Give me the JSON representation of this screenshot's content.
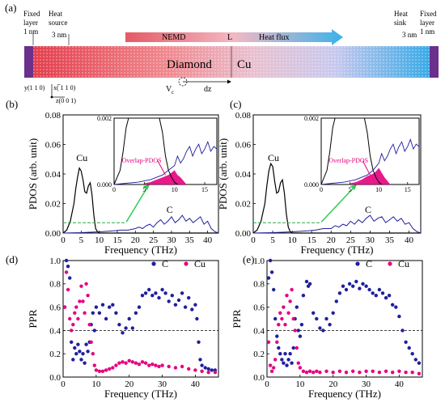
{
  "schematic": {
    "panel_label": "(a)",
    "fixed_left": [
      "Fixed",
      "layer",
      "1 nm"
    ],
    "heat_source": [
      "Heat",
      "source"
    ],
    "dim_3nm_left": "3 nm",
    "nemd": "NEMD",
    "length": "L",
    "heat_flux": "Heat flux",
    "heat_sink": [
      "Heat",
      "sink"
    ],
    "dim_3nm_right": "3 nm",
    "fixed_right": [
      "Fixed",
      "layer",
      "1 nm"
    ],
    "diamond": "Diamond",
    "cu": "Cu",
    "vacancy": "V",
    "vacancy_sub": "c",
    "dz": "dz",
    "axis_y": "y(1 1 0)",
    "axis_x": "x(̅ 1 1 0)",
    "axis_z": "z(0 0 1)"
  },
  "colors": {
    "cu": "#000000",
    "c": "#1f1f9e",
    "overlap": "#e6007e",
    "arrow": "#2ecc55",
    "dashed": "#22aa44"
  },
  "chart_data": [
    {
      "panel": "(b)",
      "type": "line",
      "xlabel": "Frequency (THz)",
      "ylabel": "PDOS (arb. unit)",
      "xlim": [
        0,
        43
      ],
      "ylim": [
        0,
        0.08
      ],
      "xticks": [
        0,
        5,
        10,
        15,
        20,
        25,
        30,
        35,
        40
      ],
      "yticks": [
        "0.00",
        "0.02",
        "0.04",
        "0.06",
        "0.08"
      ],
      "labels": {
        "cu": "Cu",
        "c": "C"
      },
      "series": [
        {
          "name": "Cu",
          "x": [
            0,
            1,
            2,
            3,
            3.5,
            4,
            4.5,
            5,
            5.5,
            6,
            6.5,
            7,
            7.5,
            8,
            8.5,
            9,
            9.5,
            10,
            43
          ],
          "y": [
            0,
            0.002,
            0.008,
            0.02,
            0.03,
            0.038,
            0.044,
            0.042,
            0.036,
            0.028,
            0.027,
            0.032,
            0.034,
            0.026,
            0.012,
            0.003,
            0.001,
            0,
            0
          ]
        },
        {
          "name": "C",
          "x": [
            0,
            5,
            10,
            14,
            16,
            18,
            20,
            21,
            22,
            23,
            24,
            25,
            26,
            27,
            28,
            29,
            30,
            31,
            32,
            33,
            34,
            35,
            36,
            37,
            38,
            39,
            40,
            41,
            42,
            43
          ],
          "y": [
            0,
            0.0003,
            0.0008,
            0.0015,
            0.002,
            0.002,
            0.003,
            0.004,
            0.003,
            0.005,
            0.006,
            0.004,
            0.007,
            0.009,
            0.006,
            0.008,
            0.011,
            0.007,
            0.009,
            0.012,
            0.008,
            0.01,
            0.007,
            0.009,
            0.011,
            0.006,
            0.008,
            0.003,
            0.001,
            0
          ]
        }
      ],
      "dashed_y": 0.007,
      "inset": {
        "xlim": [
          0,
          17
        ],
        "ylim": [
          0,
          0.0028
        ],
        "xticks": [
          0,
          5,
          10,
          15
        ],
        "yticks": [
          "0.000",
          "0.002"
        ],
        "label": "Overlap-PDOS",
        "cu_x": [
          0,
          1,
          1.5,
          2,
          2.4,
          7.5,
          8,
          8.5,
          9,
          9.5,
          10,
          10.5
        ],
        "cu_y": [
          0,
          0.0006,
          0.0014,
          0.0024,
          0.0028,
          0.0028,
          0.0022,
          0.0012,
          0.0006,
          0.0003,
          0.0001,
          0
        ],
        "c_x": [
          0,
          2,
          4,
          6,
          7,
          8,
          9,
          10,
          10.5,
          11,
          11.5,
          12,
          12.5,
          13,
          13.5,
          14,
          14.5,
          15,
          15.5,
          16,
          16.5,
          17
        ],
        "c_y": [
          0,
          5e-05,
          0.0001,
          0.0002,
          0.0003,
          0.0004,
          0.0006,
          0.0008,
          0.0012,
          0.0009,
          0.0011,
          0.0014,
          0.0016,
          0.0012,
          0.0015,
          0.0017,
          0.0013,
          0.0015,
          0.0018,
          0.0014,
          0.0016,
          0.0015
        ],
        "ov_x": [
          5,
          6,
          7,
          8,
          9,
          9.5,
          10,
          10.5,
          11,
          11.5,
          12
        ],
        "ov_y": [
          5e-05,
          0.0001,
          0.0002,
          0.0003,
          0.0004,
          0.0005,
          0.0006,
          0.0004,
          0.0003,
          0.00015,
          0
        ]
      }
    },
    {
      "panel": "(c)",
      "type": "line",
      "xlabel": "Frequency (THz)",
      "ylabel": "PDOS (arb. unit)",
      "xlim": [
        0,
        43
      ],
      "ylim": [
        0,
        0.08
      ],
      "xticks": [
        0,
        5,
        10,
        15,
        20,
        25,
        30,
        35,
        40
      ],
      "yticks": [
        "0.00",
        "0.02",
        "0.04",
        "0.06",
        "0.08"
      ],
      "labels": {
        "cu": "Cu",
        "c": "C"
      },
      "series": [
        {
          "name": "Cu",
          "x": [
            0,
            1,
            2,
            3,
            3.5,
            4,
            4.5,
            5,
            5.5,
            6,
            6.5,
            7,
            7.5,
            8,
            8.5,
            9,
            9.5,
            10,
            43
          ],
          "y": [
            0,
            0.002,
            0.008,
            0.02,
            0.032,
            0.042,
            0.047,
            0.045,
            0.035,
            0.027,
            0.028,
            0.034,
            0.036,
            0.027,
            0.013,
            0.004,
            0.001,
            0,
            0
          ]
        },
        {
          "name": "C",
          "x": [
            0,
            5,
            10,
            14,
            16,
            18,
            20,
            21,
            22,
            23,
            24,
            25,
            26,
            27,
            28,
            29,
            30,
            31,
            32,
            33,
            34,
            35,
            36,
            37,
            38,
            39,
            40,
            41,
            42,
            43
          ],
          "y": [
            0,
            0.0003,
            0.0008,
            0.0015,
            0.002,
            0.003,
            0.003,
            0.005,
            0.004,
            0.006,
            0.005,
            0.008,
            0.006,
            0.009,
            0.007,
            0.01,
            0.012,
            0.008,
            0.01,
            0.011,
            0.007,
            0.009,
            0.011,
            0.008,
            0.01,
            0.006,
            0.007,
            0.003,
            0.001,
            0
          ]
        }
      ],
      "dashed_y": 0.007,
      "inset": {
        "xlim": [
          0,
          17
        ],
        "ylim": [
          0,
          0.0028
        ],
        "xticks": [
          0,
          5,
          10,
          15
        ],
        "yticks": [
          "0.000",
          "0.002"
        ],
        "label": "Overlap-PDOS",
        "cu_x": [
          0,
          1,
          1.5,
          2,
          2.4,
          7.5,
          8,
          8.5,
          9,
          9.5,
          10,
          10.5
        ],
        "cu_y": [
          0,
          0.0006,
          0.0014,
          0.0024,
          0.0028,
          0.0028,
          0.0022,
          0.0012,
          0.0006,
          0.0003,
          0.0001,
          0
        ],
        "c_x": [
          0,
          2,
          4,
          6,
          7,
          8,
          9,
          10,
          10.5,
          11,
          11.5,
          12,
          12.5,
          13,
          13.5,
          14,
          14.5,
          15,
          15.5,
          16,
          16.5,
          17
        ],
        "c_y": [
          0,
          5e-05,
          0.0001,
          0.0002,
          0.0003,
          0.0004,
          0.0006,
          0.0009,
          0.0013,
          0.001,
          0.0012,
          0.0015,
          0.0017,
          0.0013,
          0.0016,
          0.0018,
          0.0014,
          0.0016,
          0.0019,
          0.0015,
          0.0017,
          0.0016
        ],
        "ov_x": [
          5,
          6,
          7,
          8,
          9,
          9.5,
          10,
          10.5,
          11,
          11.5,
          12
        ],
        "ov_y": [
          5e-05,
          0.0001,
          0.0002,
          0.00035,
          0.00045,
          0.00055,
          0.0007,
          0.0005,
          0.0003,
          0.00015,
          0
        ]
      }
    },
    {
      "panel": "(d)",
      "type": "scatter",
      "xlabel": "Frequency (THz)",
      "ylabel": "PPR",
      "xlim": [
        0,
        47
      ],
      "ylim": [
        0,
        1.0
      ],
      "xticks": [
        0,
        10,
        20,
        30,
        40
      ],
      "yticks": [
        "0.0",
        "0.2",
        "0.4",
        "0.6",
        "0.8",
        "1.0"
      ],
      "legend": [
        "C",
        "Cu"
      ],
      "dashed_y": 0.4,
      "series": [
        {
          "name": "C",
          "x": [
            0.5,
            1,
            1.5,
            2,
            2.5,
            3,
            3.5,
            4,
            4.5,
            5,
            5.5,
            6,
            6.5,
            7,
            7.5,
            8,
            8.5,
            9,
            9.5,
            10,
            11,
            12,
            13,
            14,
            15,
            16,
            17,
            18,
            19,
            20,
            21,
            22,
            23,
            24,
            25,
            26,
            27,
            28,
            29,
            30,
            31,
            32,
            33,
            34,
            35,
            36,
            37,
            38,
            39,
            40,
            40.5,
            41,
            41.5,
            42,
            43,
            44,
            45,
            46
          ],
          "y": [
            0.6,
            1.0,
            0.95,
            0.85,
            0.3,
            0.15,
            0.25,
            0.2,
            0.28,
            0.22,
            0.15,
            0.2,
            0.12,
            0.28,
            0.22,
            0.3,
            0.45,
            0.55,
            0.4,
            0.6,
            0.55,
            0.62,
            0.5,
            0.6,
            0.62,
            0.55,
            0.45,
            0.38,
            0.42,
            0.5,
            0.42,
            0.55,
            0.6,
            0.7,
            0.72,
            0.75,
            0.7,
            0.72,
            0.68,
            0.75,
            0.72,
            0.65,
            0.7,
            0.62,
            0.66,
            0.72,
            0.6,
            0.68,
            0.58,
            0.62,
            0.5,
            0.3,
            0.15,
            0.1,
            0.08,
            0.07,
            0.06,
            0.06
          ]
        },
        {
          "name": "Cu",
          "x": [
            0.5,
            1,
            1.5,
            2,
            2.5,
            3,
            3.5,
            4,
            4.5,
            5,
            5.5,
            6,
            6.5,
            7,
            7.5,
            8,
            8.5,
            9,
            9.5,
            10,
            11,
            12,
            13,
            14,
            15,
            16,
            17,
            18,
            19,
            20,
            21,
            22,
            23,
            24,
            25,
            26,
            27,
            28,
            29,
            30,
            32,
            34,
            36,
            38,
            40,
            42,
            44,
            46
          ],
          "y": [
            0.6,
            0.9,
            0.75,
            0.5,
            0.4,
            0.45,
            0.55,
            0.6,
            0.5,
            0.65,
            0.78,
            0.65,
            0.55,
            0.8,
            0.7,
            0.45,
            0.3,
            0.2,
            0.1,
            0.06,
            0.05,
            0.05,
            0.06,
            0.07,
            0.08,
            0.1,
            0.12,
            0.13,
            0.12,
            0.14,
            0.13,
            0.12,
            0.11,
            0.13,
            0.12,
            0.1,
            0.11,
            0.1,
            0.09,
            0.1,
            0.09,
            0.08,
            0.09,
            0.07,
            0.06,
            0.05,
            0.04,
            0.04
          ]
        }
      ]
    },
    {
      "panel": "(e)",
      "type": "scatter",
      "xlabel": "Frequency (THz)",
      "ylabel": "PPR",
      "xlim": [
        0,
        47
      ],
      "ylim": [
        0,
        1.0
      ],
      "xticks": [
        0,
        10,
        20,
        30,
        40
      ],
      "yticks": [
        "0.0",
        "0.2",
        "0.4",
        "0.6",
        "0.8",
        "1.0"
      ],
      "legend": [
        "C",
        "Cu"
      ],
      "dashed_y": 0.4,
      "series": [
        {
          "name": "C",
          "x": [
            0.5,
            1,
            1.5,
            2,
            2.5,
            3,
            3.5,
            4,
            4.5,
            5,
            5.5,
            6,
            6.5,
            7,
            7.5,
            8,
            8.5,
            9,
            9.5,
            10,
            10.5,
            11,
            12,
            12.5,
            13,
            14,
            15,
            16,
            17,
            18,
            19,
            20,
            21,
            22,
            23,
            24,
            25,
            26,
            27,
            28,
            29,
            30,
            31,
            32,
            33,
            34,
            35,
            36,
            37,
            38,
            39,
            40,
            41,
            42,
            43,
            44,
            45,
            46
          ],
          "y": [
            0.85,
            1.0,
            0.9,
            0.75,
            0.5,
            0.35,
            0.25,
            0.2,
            0.15,
            0.12,
            0.2,
            0.1,
            0.15,
            0.2,
            0.12,
            0.25,
            0.5,
            0.6,
            0.4,
            0.35,
            0.45,
            0.7,
            0.82,
            0.78,
            0.8,
            0.55,
            0.5,
            0.42,
            0.4,
            0.5,
            0.45,
            0.55,
            0.65,
            0.72,
            0.78,
            0.75,
            0.8,
            0.78,
            0.82,
            0.76,
            0.8,
            0.78,
            0.75,
            0.72,
            0.7,
            0.75,
            0.72,
            0.68,
            0.7,
            0.62,
            0.6,
            0.52,
            0.4,
            0.3,
            0.25,
            0.2,
            0.15,
            0.12
          ]
        },
        {
          "name": "Cu",
          "x": [
            0.5,
            1,
            1.5,
            2,
            2.5,
            3,
            3.5,
            4,
            4.5,
            5,
            5.5,
            6,
            6.5,
            7,
            7.5,
            8,
            8.5,
            9,
            9.5,
            10,
            11,
            12,
            13,
            14,
            15,
            16,
            18,
            20,
            22,
            24,
            26,
            28,
            30,
            32,
            34,
            36,
            38,
            40,
            42,
            44,
            46
          ],
          "y": [
            0.3,
            0.1,
            0.05,
            0.08,
            0.15,
            0.3,
            0.45,
            0.55,
            0.5,
            0.6,
            0.45,
            0.7,
            0.55,
            0.65,
            0.75,
            0.5,
            0.4,
            0.25,
            0.12,
            0.08,
            0.05,
            0.04,
            0.05,
            0.04,
            0.05,
            0.04,
            0.05,
            0.04,
            0.05,
            0.04,
            0.05,
            0.04,
            0.05,
            0.05,
            0.04,
            0.05,
            0.04,
            0.05,
            0.04,
            0.04,
            0.03
          ]
        }
      ]
    }
  ]
}
